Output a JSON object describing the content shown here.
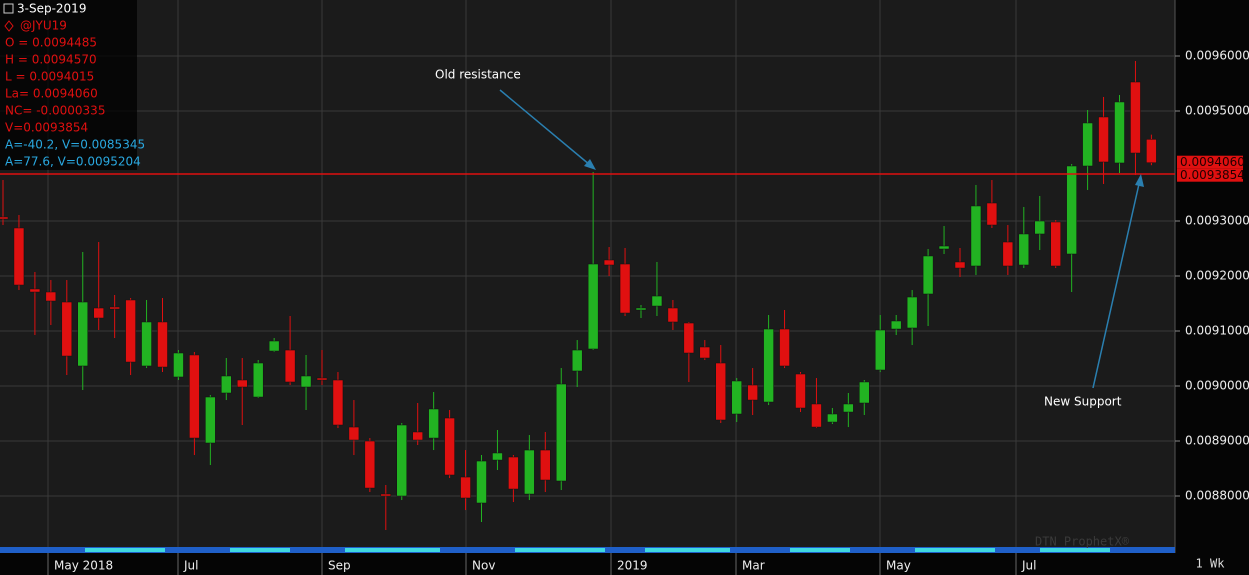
{
  "chart_data": {
    "type": "candlestick",
    "symbol_date": "3-Sep-2019",
    "symbol": "@JYU19",
    "info_lines": [
      "O = 0.0094485",
      "H = 0.0094570",
      "L = 0.0094015",
      "La= 0.0094060",
      "NC= -0.0000335",
      "V=0.0093854"
    ],
    "study_lines": [
      "A=-40.2, V=0.0085345",
      "A=77.6, V=0.0095204"
    ],
    "up_color": "#22b322",
    "down_color": "#e01010",
    "open": [
      0.0093073,
      0.0092873,
      0.0091764,
      0.0091709,
      0.0091527,
      0.0090364,
      0.0091418,
      0.0091436,
      0.0091564,
      0.0090364,
      0.0091164,
      0.0090164,
      0.0090564,
      0.0088964,
      0.0089873,
      0.0090109,
      0.00898,
      0.0090636,
      0.0090654,
      0.0089982,
      0.0090145,
      0.0090109,
      0.0089254,
      0.0089,
      0.0088036,
      0.0088,
      0.0089164,
      0.0089054,
      0.0089418,
      0.0088345,
      0.0087873,
      0.0088654,
      0.0088709,
      0.0088036,
      0.0088836,
      0.0088273,
      0.0090273,
      0.0090673,
      0.0092291,
      0.0092218,
      0.0091382,
      0.0091454,
      0.0091418,
      0.0091145,
      0.0090709,
      0.0090418,
      0.0089491,
      0.0090018,
      0.0089709,
      0.0091036,
      0.0090218,
      0.0089673,
      0.0089345,
      0.0089527,
      0.0089691,
      0.0090291,
      0.0091036,
      0.0091055,
      0.0091673,
      0.0092491,
      0.0092255,
      0.0092182,
      0.0093327,
      0.0092618,
      0.00922,
      0.0092764,
      0.0092982,
      0.00924,
      0.0094,
      0.0094891,
      0.0094055,
      0.0095527,
      0.0094485
    ],
    "high": [
      0.0093745,
      0.0093109,
      0.0092073,
      0.0091927,
      0.0091927,
      0.0092436,
      0.0092618,
      0.0091655,
      0.00916,
      0.0091564,
      0.00916,
      0.0090654,
      0.0090618,
      0.0089836,
      0.0090509,
      0.0090509,
      0.0090473,
      0.0090873,
      0.0091273,
      0.0090564,
      0.0090654,
      0.0090254,
      0.0089745,
      0.0089054,
      0.00882,
      0.0089327,
      0.0089691,
      0.0089891,
      0.0089564,
      0.0088836,
      0.0088745,
      0.00892,
      0.0088745,
      0.0089109,
      0.0089164,
      0.0090327,
      0.0090836,
      0.0093891,
      0.0092527,
      0.0092509,
      0.0091473,
      0.0092255,
      0.0091564,
      0.0091164,
      0.0090836,
      0.0090745,
      0.0090145,
      0.0090327,
      0.0091291,
      0.0091382,
      0.0090254,
      0.0090145,
      0.00896,
      0.0089873,
      0.0090109,
      0.0091291,
      0.0091291,
      0.0091745,
      0.0092491,
      0.0092909,
      0.0092509,
      0.0093655,
      0.0093745,
      0.0092927,
      0.0093255,
      0.0093455,
      0.0093018,
      0.0094036,
      0.0095018,
      0.0095255,
      0.0095291,
      0.0095909,
      0.009457
    ],
    "low": [
      0.0092927,
      0.0091745,
      0.0090927,
      0.0091109,
      0.00902,
      0.0089927,
      0.0091018,
      0.0090873,
      0.00902,
      0.0090327,
      0.0090254,
      0.0090109,
      0.0088745,
      0.0088564,
      0.0089745,
      0.0089291,
      0.0089782,
      0.0090618,
      0.0090018,
      0.0089564,
      0.0090018,
      0.0089236,
      0.0088745,
      0.0088073,
      0.0087382,
      0.0087927,
      0.0088927,
      0.0088836,
      0.0088327,
      0.0087745,
      0.0087527,
      0.0088473,
      0.0087891,
      0.0087927,
      0.0088073,
      0.0088109,
      0.0089982,
      0.0090654,
      0.0092,
      0.0091273,
      0.0091236,
      0.0091273,
      0.0091018,
      0.0090073,
      0.0090473,
      0.0089327,
      0.0089345,
      0.0089473,
      0.0089654,
      0.0090327,
      0.0089527,
      0.0089236,
      0.0089309,
      0.0089254,
      0.0089473,
      0.0090254,
      0.0090927,
      0.0090745,
      0.0091091,
      0.00924,
      0.0091982,
      0.0092018,
      0.0092873,
      0.0092018,
      0.0092145,
      0.0092473,
      0.0092145,
      0.0091709,
      0.0093564,
      0.0093673,
      0.0093873,
      0.0093836,
      0.0094015
    ],
    "close": [
      0.0093036,
      0.0091836,
      0.0091709,
      0.0091545,
      0.0090545,
      0.0091527,
      0.0091236,
      0.00914,
      0.0090436,
      0.0091164,
      0.0090345,
      0.00906,
      0.0089054,
      0.00898,
      0.0090182,
      0.0089982,
      0.0090418,
      0.0090818,
      0.0090073,
      0.0090182,
      0.0090109,
      0.0089291,
      0.0089018,
      0.0088145,
      0.0088,
      0.0089291,
      0.0089018,
      0.0089582,
      0.0088382,
      0.0087964,
      0.0088636,
      0.0088782,
      0.0088127,
      0.0088836,
      0.0088291,
      0.0090036,
      0.0090654,
      0.0092218,
      0.00922,
      0.0091327,
      0.0091418,
      0.0091636,
      0.0091164,
      0.00906,
      0.0090509,
      0.0089382,
      0.0090091,
      0.0089745,
      0.0091036,
      0.0090364,
      0.00896,
      0.0089254,
      0.0089491,
      0.0089673,
      0.0090073,
      0.0091018,
      0.0091182,
      0.0091618,
      0.0092364,
      0.0092545,
      0.0092145,
      0.0093273,
      0.0092927,
      0.0092182,
      0.0092764,
      0.0093,
      0.0092182,
      0.0094,
      0.0094782,
      0.0094073,
      0.0095164,
      0.0094236,
      0.009406
    ],
    "ylim": [
      0.0087073,
      0.0097018
    ],
    "yticks": [
      {
        "value": 0.0096,
        "label": "0.0096000"
      },
      {
        "value": 0.0095,
        "label": "0.0095000"
      },
      {
        "value": 0.0093,
        "label": "0.0093000"
      },
      {
        "value": 0.0092,
        "label": "0.0092000"
      },
      {
        "value": 0.0091,
        "label": "0.0091000"
      },
      {
        "value": 0.009,
        "label": "0.0090000"
      },
      {
        "value": 0.0089,
        "label": "0.0089000"
      },
      {
        "value": 0.0088,
        "label": "0.0088000"
      }
    ],
    "x_labels": [
      "May 2018",
      "Jul",
      "Sep",
      "Nov",
      "2019",
      "Mar",
      "May",
      "Jul"
    ],
    "interval": "1 Wk",
    "reference_line": {
      "value": 0.0093854,
      "label": "0.0093854",
      "color": "#e01010"
    },
    "last_price": {
      "value": 0.009406,
      "label": "0.0094060"
    },
    "annotations": [
      "Old resistance",
      "New Support"
    ],
    "watermark": "DTN ProphetX®",
    "grid": true
  }
}
